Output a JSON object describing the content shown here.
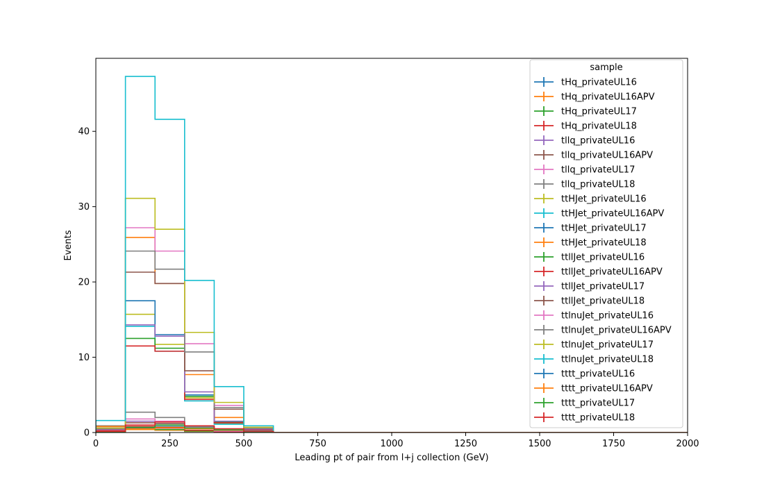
{
  "chart_data": {
    "type": "step",
    "title": "",
    "xlabel": "Leading pt of pair from l+j collection (GeV)",
    "ylabel": "Events",
    "xlim": [
      0,
      2000
    ],
    "ylim": [
      0,
      49.7
    ],
    "xticks": [
      0,
      250,
      500,
      750,
      1000,
      1250,
      1500,
      1750,
      2000
    ],
    "yticks": [
      0,
      10,
      20,
      30,
      40
    ],
    "bin_edges": [
      0,
      100,
      200,
      300,
      400,
      500,
      600,
      700,
      800,
      900,
      1000,
      1100,
      1200,
      1300,
      1400,
      1500,
      1600,
      1700,
      1800,
      1900,
      2000
    ],
    "legend": {
      "title": "sample",
      "position": "upper right"
    },
    "series": [
      {
        "name": "tHq_privateUL16",
        "color": "#1f77b4",
        "values": [
          0.3,
          0.4,
          0.3,
          0.15,
          0.05,
          0.02,
          0,
          0,
          0,
          0,
          0,
          0,
          0,
          0,
          0,
          0,
          0,
          0,
          0,
          0
        ]
      },
      {
        "name": "tHq_privateUL16APV",
        "color": "#ff7f0e",
        "values": [
          0.3,
          0.4,
          0.3,
          0.15,
          0.05,
          0.02,
          0,
          0,
          0,
          0,
          0,
          0,
          0,
          0,
          0,
          0,
          0,
          0,
          0,
          0
        ]
      },
      {
        "name": "tHq_privateUL17",
        "color": "#2ca02c",
        "values": [
          0.4,
          0.5,
          0.4,
          0.2,
          0.1,
          0.03,
          0,
          0,
          0,
          0,
          0,
          0,
          0,
          0,
          0,
          0,
          0,
          0,
          0,
          0
        ]
      },
      {
        "name": "tHq_privateUL18",
        "color": "#d62728",
        "values": [
          0.6,
          0.8,
          0.6,
          0.3,
          0.1,
          0.03,
          0,
          0,
          0,
          0,
          0,
          0,
          0,
          0,
          0,
          0,
          0,
          0,
          0,
          0
        ]
      },
      {
        "name": "tllq_privateUL16",
        "color": "#9467bd",
        "values": [
          0.5,
          1.5,
          1.2,
          0.6,
          0.2,
          0.05,
          0,
          0,
          0,
          0,
          0,
          0,
          0,
          0,
          0,
          0,
          0,
          0,
          0,
          0
        ]
      },
      {
        "name": "tllq_privateUL16APV",
        "color": "#8c564b",
        "values": [
          0.5,
          1.3,
          1.2,
          0.5,
          0.2,
          0.05,
          0,
          0,
          0,
          0,
          0,
          0,
          0,
          0,
          0,
          0,
          0,
          0,
          0,
          0
        ]
      },
      {
        "name": "tllq_privateUL17",
        "color": "#e377c2",
        "values": [
          0.6,
          1.8,
          1.5,
          0.7,
          0.2,
          0.05,
          0,
          0,
          0,
          0,
          0,
          0,
          0,
          0,
          0,
          0,
          0,
          0,
          0,
          0
        ]
      },
      {
        "name": "tllq_privateUL18",
        "color": "#7f7f7f",
        "values": [
          0.9,
          2.7,
          2.0,
          0.8,
          0.3,
          0.1,
          0,
          0,
          0,
          0,
          0,
          0,
          0,
          0,
          0,
          0,
          0,
          0,
          0,
          0
        ]
      },
      {
        "name": "ttHJet_privateUL16",
        "color": "#bcbd22",
        "values": [
          0.4,
          15.7,
          11.7,
          4.6,
          1.2,
          0.3,
          0,
          0,
          0,
          0,
          0,
          0,
          0,
          0,
          0,
          0,
          0,
          0,
          0,
          0
        ]
      },
      {
        "name": "ttHJet_privateUL16APV",
        "color": "#17becf",
        "values": [
          0.4,
          14.1,
          10.8,
          4.2,
          1.1,
          0.3,
          0,
          0,
          0,
          0,
          0,
          0,
          0,
          0,
          0,
          0,
          0,
          0,
          0,
          0
        ]
      },
      {
        "name": "ttHJet_privateUL17",
        "color": "#1f77b4",
        "values": [
          0.5,
          17.5,
          13.0,
          5.0,
          1.3,
          0.35,
          0,
          0,
          0,
          0,
          0,
          0,
          0,
          0,
          0,
          0,
          0,
          0,
          0,
          0
        ]
      },
      {
        "name": "ttHJet_privateUL18",
        "color": "#ff7f0e",
        "values": [
          0.8,
          25.9,
          19.8,
          7.7,
          2.0,
          0.5,
          0,
          0,
          0,
          0,
          0,
          0,
          0,
          0,
          0,
          0,
          0,
          0,
          0,
          0
        ]
      },
      {
        "name": "ttllJet_privateUL16",
        "color": "#2ca02c",
        "values": [
          0.3,
          12.5,
          11.2,
          4.8,
          1.4,
          0.4,
          0,
          0,
          0,
          0,
          0,
          0,
          0,
          0,
          0,
          0,
          0,
          0,
          0,
          0
        ]
      },
      {
        "name": "ttllJet_privateUL16APV",
        "color": "#d62728",
        "values": [
          0.3,
          11.5,
          10.8,
          4.4,
          1.3,
          0.35,
          0,
          0,
          0,
          0,
          0,
          0,
          0,
          0,
          0,
          0,
          0,
          0,
          0,
          0
        ]
      },
      {
        "name": "ttllJet_privateUL17",
        "color": "#9467bd",
        "values": [
          0.4,
          14.3,
          12.8,
          5.4,
          1.5,
          0.45,
          0,
          0,
          0,
          0,
          0,
          0,
          0,
          0,
          0,
          0,
          0,
          0,
          0,
          0
        ]
      },
      {
        "name": "ttllJet_privateUL18",
        "color": "#8c564b",
        "values": [
          0.6,
          21.3,
          19.8,
          8.2,
          3.1,
          0.7,
          0,
          0,
          0,
          0,
          0,
          0,
          0,
          0,
          0,
          0,
          0,
          0,
          0,
          0
        ]
      },
      {
        "name": "ttlnuJet_privateUL16",
        "color": "#e377c2",
        "values": [
          0.5,
          27.2,
          24.1,
          11.8,
          3.6,
          0.6,
          0,
          0,
          0,
          0,
          0,
          0,
          0,
          0,
          0,
          0,
          0,
          0,
          0,
          0
        ]
      },
      {
        "name": "ttlnuJet_privateUL16APV",
        "color": "#7f7f7f",
        "values": [
          0.5,
          24.1,
          21.7,
          10.7,
          3.3,
          0.55,
          0,
          0,
          0,
          0,
          0,
          0,
          0,
          0,
          0,
          0,
          0,
          0,
          0,
          0
        ]
      },
      {
        "name": "ttlnuJet_privateUL17",
        "color": "#bcbd22",
        "values": [
          0.6,
          31.1,
          27.0,
          13.3,
          4.0,
          0.7,
          0,
          0,
          0,
          0,
          0,
          0,
          0,
          0,
          0,
          0,
          0,
          0,
          0,
          0
        ]
      },
      {
        "name": "ttlnuJet_privateUL18",
        "color": "#17becf",
        "values": [
          1.6,
          47.3,
          41.6,
          20.2,
          6.1,
          0.9,
          0,
          0,
          0,
          0,
          0,
          0,
          0,
          0,
          0,
          0,
          0,
          0,
          0,
          0
        ]
      },
      {
        "name": "tttt_privateUL16",
        "color": "#1f77b4",
        "values": [
          0.1,
          0.6,
          0.8,
          0.5,
          0.3,
          0.1,
          0,
          0,
          0,
          0,
          0,
          0,
          0,
          0,
          0,
          0,
          0,
          0,
          0,
          0
        ]
      },
      {
        "name": "tttt_privateUL16APV",
        "color": "#ff7f0e",
        "values": [
          0.1,
          0.5,
          0.7,
          0.5,
          0.3,
          0.1,
          0,
          0,
          0,
          0,
          0,
          0,
          0,
          0,
          0,
          0,
          0,
          0,
          0,
          0
        ]
      },
      {
        "name": "tttt_privateUL17",
        "color": "#2ca02c",
        "values": [
          0.1,
          0.7,
          1.0,
          0.6,
          0.35,
          0.12,
          0,
          0,
          0,
          0,
          0,
          0,
          0,
          0,
          0,
          0,
          0,
          0,
          0,
          0
        ]
      },
      {
        "name": "tttt_privateUL18",
        "color": "#d62728",
        "values": [
          0.15,
          1.0,
          1.4,
          0.9,
          0.5,
          0.15,
          0,
          0,
          0,
          0,
          0,
          0,
          0,
          0,
          0,
          0,
          0,
          0,
          0,
          0
        ]
      }
    ]
  }
}
